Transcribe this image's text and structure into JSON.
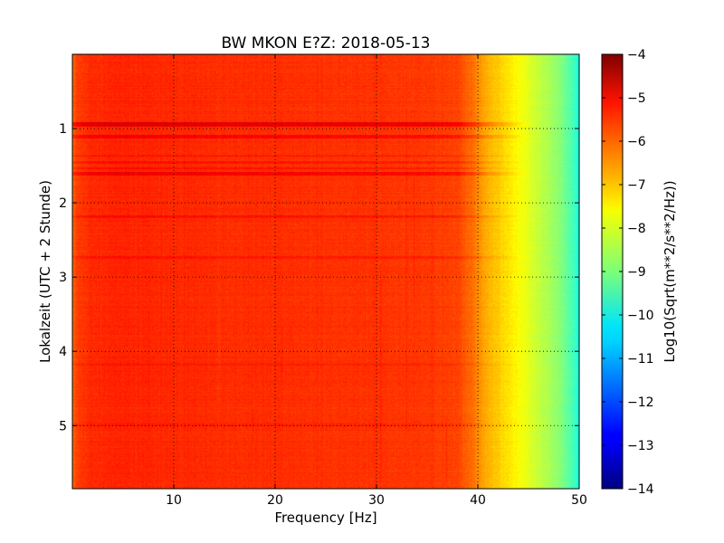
{
  "chart_data": {
    "type": "heatmap",
    "title": "BW MKON E?Z: 2018-05-13",
    "xlabel": "Frequency [Hz]",
    "ylabel": "Lokalzeit (UTC + 2 Stunde)",
    "xlim": [
      0.0,
      50.0
    ],
    "ylim": [
      5.85,
      0.0
    ],
    "y_inverted": true,
    "xticks": [
      10,
      20,
      30,
      40,
      50
    ],
    "yticks": [
      1,
      2,
      3,
      4,
      5
    ],
    "grid": true,
    "grid_style": "dotted",
    "colormap": "jet",
    "colorbar": {
      "label": "Log10(Sqrt(m**2/s**2/Hz))",
      "min": -14,
      "max": -4,
      "ticks": [
        -4,
        -5,
        -6,
        -7,
        -8,
        -9,
        -10,
        -11,
        -12,
        -13,
        -14
      ]
    },
    "freq_profile_hz": [
      0.0,
      0.5,
      2.0,
      5.0,
      10.0,
      20.0,
      30.0,
      35.0,
      38.0,
      39.5,
      40.5,
      42.0,
      44.0,
      46.0,
      48.0,
      49.5,
      50.0
    ],
    "freq_profile_log10": [
      -6.1,
      -5.7,
      -5.5,
      -5.45,
      -5.5,
      -5.55,
      -5.6,
      -5.65,
      -5.75,
      -6.2,
      -6.7,
      -7.1,
      -7.6,
      -8.2,
      -8.8,
      -9.6,
      -10.0
    ],
    "time_bands": [
      {
        "t_start": 0.92,
        "t_end": 0.98,
        "offset": 0.65
      },
      {
        "t_start": 1.08,
        "t_end": 1.13,
        "offset": 0.45
      },
      {
        "t_start": 1.35,
        "t_end": 1.38,
        "offset": 0.2
      },
      {
        "t_start": 1.44,
        "t_end": 1.47,
        "offset": 0.25
      },
      {
        "t_start": 1.52,
        "t_end": 1.55,
        "offset": 0.3
      },
      {
        "t_start": 1.58,
        "t_end": 1.63,
        "offset": 0.5
      },
      {
        "t_start": 2.17,
        "t_end": 2.21,
        "offset": 0.3
      },
      {
        "t_start": 2.72,
        "t_end": 2.76,
        "offset": 0.2
      },
      {
        "t_start": 4.15,
        "t_end": 4.19,
        "offset": 0.15
      },
      {
        "t_start": 4.97,
        "t_end": 5.01,
        "offset": 0.15
      }
    ]
  }
}
